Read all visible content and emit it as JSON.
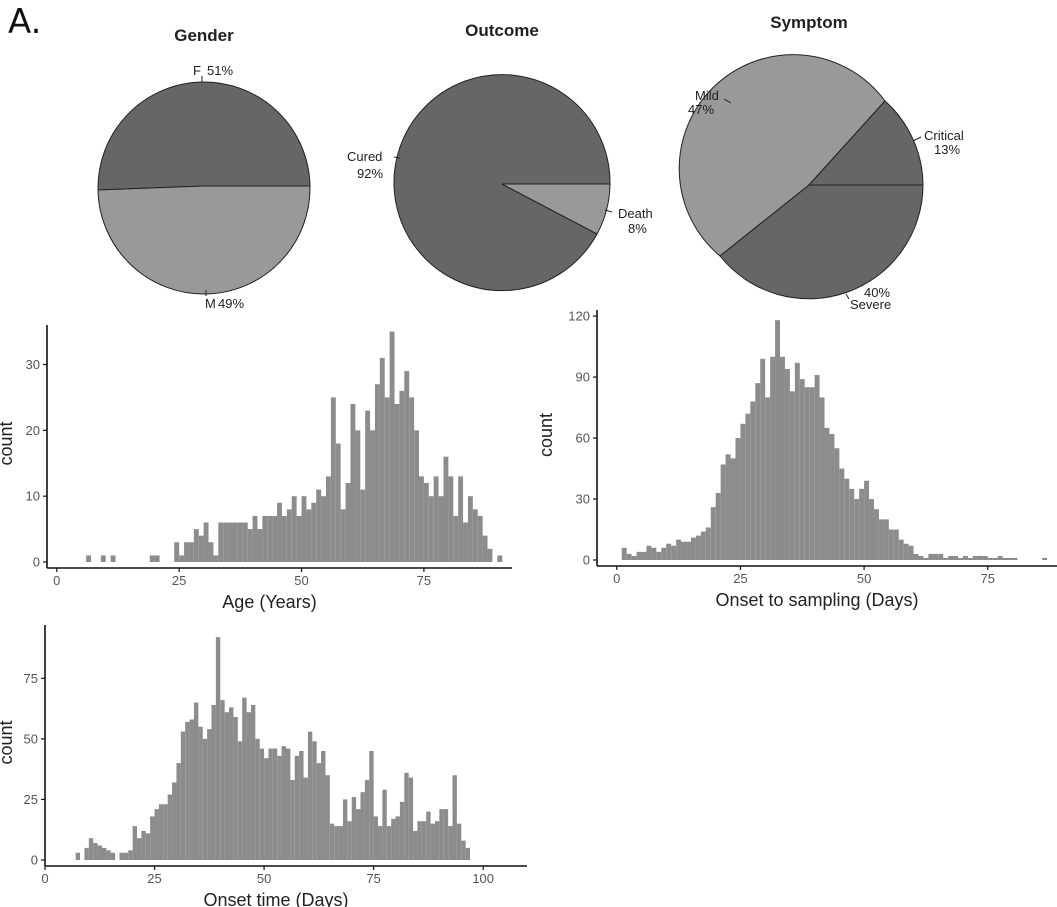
{
  "panel_letter": "A.",
  "chart_data": [
    {
      "type": "pie",
      "title": "Gender",
      "slices": [
        {
          "label": "F",
          "percent_label": "51%",
          "value": 51,
          "color": "#666666"
        },
        {
          "label": "M",
          "percent_label": "49%",
          "value": 49,
          "color": "#999999"
        }
      ]
    },
    {
      "type": "pie",
      "title": "Outcome",
      "slices": [
        {
          "label": "Death",
          "percent_label": "8%",
          "value": 8,
          "color": "#999999"
        },
        {
          "label": "Cured",
          "percent_label": "92%",
          "value": 92,
          "color": "#666666"
        }
      ]
    },
    {
      "type": "pie",
      "title": "Symptom",
      "slices": [
        {
          "label": "Mild",
          "percent_label": "47%",
          "value": 47,
          "color": "#999999"
        },
        {
          "label": "Critical",
          "percent_label": "13%",
          "value": 13,
          "color": "#666666"
        },
        {
          "label": "Severe",
          "percent_label": "40%",
          "value": 40,
          "color": "#666666"
        }
      ]
    },
    {
      "type": "bar",
      "subtype": "histogram",
      "title": "",
      "xlabel": "Age (Years)",
      "ylabel": "count",
      "xlim": [
        -2,
        93
      ],
      "ylim": [
        0,
        36
      ],
      "xticks": [
        0,
        25,
        50,
        75
      ],
      "yticks": [
        0,
        10,
        20,
        30
      ],
      "bin_width": 1,
      "bar_color": "#8c8c8c",
      "bins": [
        [
          6,
          1
        ],
        [
          9,
          1
        ],
        [
          11,
          1
        ],
        [
          19,
          1
        ],
        [
          20,
          1
        ],
        [
          24,
          3
        ],
        [
          25,
          1
        ],
        [
          26,
          3
        ],
        [
          27,
          3
        ],
        [
          28,
          5
        ],
        [
          29,
          4
        ],
        [
          30,
          6
        ],
        [
          31,
          3
        ],
        [
          32,
          1
        ],
        [
          33,
          6
        ],
        [
          34,
          6
        ],
        [
          35,
          6
        ],
        [
          36,
          6
        ],
        [
          37,
          6
        ],
        [
          38,
          6
        ],
        [
          39,
          5
        ],
        [
          40,
          7
        ],
        [
          41,
          5
        ],
        [
          42,
          7
        ],
        [
          43,
          7
        ],
        [
          44,
          7
        ],
        [
          45,
          9
        ],
        [
          46,
          7
        ],
        [
          47,
          8
        ],
        [
          48,
          10
        ],
        [
          49,
          7
        ],
        [
          50,
          10
        ],
        [
          51,
          8
        ],
        [
          52,
          9
        ],
        [
          53,
          11
        ],
        [
          54,
          10
        ],
        [
          55,
          13
        ],
        [
          56,
          25
        ],
        [
          57,
          18
        ],
        [
          58,
          8
        ],
        [
          59,
          12
        ],
        [
          60,
          24
        ],
        [
          61,
          20
        ],
        [
          62,
          11
        ],
        [
          63,
          23
        ],
        [
          64,
          20
        ],
        [
          65,
          27
        ],
        [
          66,
          31
        ],
        [
          67,
          25
        ],
        [
          68,
          35
        ],
        [
          69,
          24
        ],
        [
          70,
          26
        ],
        [
          71,
          29
        ],
        [
          72,
          25
        ],
        [
          73,
          20
        ],
        [
          74,
          13
        ],
        [
          75,
          12
        ],
        [
          76,
          10
        ],
        [
          77,
          13
        ],
        [
          78,
          10
        ],
        [
          79,
          16
        ],
        [
          80,
          13
        ],
        [
          81,
          7
        ],
        [
          82,
          13
        ],
        [
          83,
          6
        ],
        [
          84,
          10
        ],
        [
          85,
          8
        ],
        [
          86,
          7
        ],
        [
          87,
          4
        ],
        [
          88,
          2
        ],
        [
          90,
          1
        ]
      ]
    },
    {
      "type": "bar",
      "subtype": "histogram",
      "title": "",
      "xlabel": "Onset to sampling (Days)",
      "ylabel": "count",
      "xlim": [
        -4,
        89
      ],
      "ylim": [
        0,
        123
      ],
      "xticks": [
        0,
        25,
        50,
        75
      ],
      "yticks": [
        0,
        30,
        60,
        90,
        120
      ],
      "bin_width": 1,
      "bar_color": "#8c8c8c",
      "bins": [
        [
          1,
          6
        ],
        [
          2,
          3
        ],
        [
          3,
          2
        ],
        [
          4,
          4
        ],
        [
          5,
          4
        ],
        [
          6,
          7
        ],
        [
          7,
          6
        ],
        [
          8,
          4
        ],
        [
          9,
          6
        ],
        [
          10,
          8
        ],
        [
          11,
          7
        ],
        [
          12,
          10
        ],
        [
          13,
          9
        ],
        [
          14,
          9
        ],
        [
          15,
          11
        ],
        [
          16,
          12
        ],
        [
          17,
          14
        ],
        [
          18,
          16
        ],
        [
          19,
          26
        ],
        [
          20,
          33
        ],
        [
          21,
          47
        ],
        [
          22,
          52
        ],
        [
          23,
          50
        ],
        [
          24,
          60
        ],
        [
          25,
          67
        ],
        [
          26,
          72
        ],
        [
          27,
          78
        ],
        [
          28,
          87
        ],
        [
          29,
          99
        ],
        [
          30,
          80
        ],
        [
          31,
          100
        ],
        [
          32,
          118
        ],
        [
          33,
          100
        ],
        [
          34,
          94
        ],
        [
          35,
          83
        ],
        [
          36,
          97
        ],
        [
          37,
          89
        ],
        [
          38,
          85
        ],
        [
          39,
          85
        ],
        [
          40,
          91
        ],
        [
          41,
          80
        ],
        [
          42,
          65
        ],
        [
          43,
          62
        ],
        [
          44,
          55
        ],
        [
          45,
          45
        ],
        [
          46,
          40
        ],
        [
          47,
          35
        ],
        [
          48,
          30
        ],
        [
          49,
          35
        ],
        [
          50,
          39
        ],
        [
          51,
          30
        ],
        [
          52,
          25
        ],
        [
          53,
          20
        ],
        [
          54,
          20
        ],
        [
          55,
          15
        ],
        [
          56,
          15
        ],
        [
          57,
          10
        ],
        [
          58,
          8
        ],
        [
          59,
          7
        ],
        [
          60,
          3
        ],
        [
          61,
          2
        ],
        [
          62,
          1
        ],
        [
          63,
          3
        ],
        [
          64,
          3
        ],
        [
          65,
          3
        ],
        [
          66,
          1
        ],
        [
          67,
          2
        ],
        [
          68,
          2
        ],
        [
          69,
          1
        ],
        [
          70,
          2
        ],
        [
          71,
          1
        ],
        [
          72,
          2
        ],
        [
          73,
          2
        ],
        [
          74,
          2
        ],
        [
          75,
          1
        ],
        [
          76,
          1
        ],
        [
          77,
          2
        ],
        [
          78,
          1
        ],
        [
          79,
          1
        ],
        [
          80,
          1
        ],
        [
          86,
          1
        ]
      ]
    },
    {
      "type": "bar",
      "subtype": "histogram",
      "title": "",
      "xlabel": "Onset time (Days)",
      "ylabel": "count",
      "xlim": [
        0,
        110
      ],
      "ylim": [
        0,
        97
      ],
      "xticks": [
        0,
        25,
        50,
        75,
        100
      ],
      "yticks": [
        0,
        25,
        50,
        75
      ],
      "bin_width": 1,
      "bar_color": "#8c8c8c",
      "bins": [
        [
          7,
          3
        ],
        [
          9,
          5
        ],
        [
          10,
          9
        ],
        [
          11,
          7
        ],
        [
          12,
          6
        ],
        [
          13,
          5
        ],
        [
          14,
          4
        ],
        [
          15,
          3
        ],
        [
          17,
          3
        ],
        [
          18,
          3
        ],
        [
          19,
          4
        ],
        [
          20,
          14
        ],
        [
          21,
          9
        ],
        [
          22,
          12
        ],
        [
          23,
          11
        ],
        [
          24,
          18
        ],
        [
          25,
          21
        ],
        [
          26,
          23
        ],
        [
          27,
          23
        ],
        [
          28,
          27
        ],
        [
          29,
          32
        ],
        [
          30,
          40
        ],
        [
          31,
          53
        ],
        [
          32,
          57
        ],
        [
          33,
          58
        ],
        [
          34,
          65
        ],
        [
          35,
          55
        ],
        [
          36,
          50
        ],
        [
          37,
          54
        ],
        [
          38,
          64
        ],
        [
          39,
          92
        ],
        [
          40,
          66
        ],
        [
          41,
          61
        ],
        [
          42,
          63
        ],
        [
          43,
          59
        ],
        [
          44,
          49
        ],
        [
          45,
          67
        ],
        [
          46,
          61
        ],
        [
          47,
          64
        ],
        [
          48,
          50
        ],
        [
          49,
          46
        ],
        [
          50,
          42
        ],
        [
          51,
          46
        ],
        [
          52,
          46
        ],
        [
          53,
          43
        ],
        [
          54,
          47
        ],
        [
          55,
          46
        ],
        [
          56,
          33
        ],
        [
          57,
          43
        ],
        [
          58,
          45
        ],
        [
          59,
          34
        ],
        [
          60,
          53
        ],
        [
          61,
          49
        ],
        [
          62,
          40
        ],
        [
          63,
          45
        ],
        [
          64,
          35
        ],
        [
          65,
          15
        ],
        [
          66,
          14
        ],
        [
          67,
          14
        ],
        [
          68,
          25
        ],
        [
          69,
          16
        ],
        [
          70,
          26
        ],
        [
          71,
          21
        ],
        [
          72,
          28
        ],
        [
          73,
          33
        ],
        [
          74,
          45
        ],
        [
          75,
          18
        ],
        [
          76,
          14
        ],
        [
          77,
          29
        ],
        [
          78,
          14
        ],
        [
          79,
          17
        ],
        [
          80,
          18
        ],
        [
          81,
          24
        ],
        [
          82,
          36
        ],
        [
          83,
          34
        ],
        [
          84,
          12
        ],
        [
          85,
          16
        ],
        [
          86,
          16
        ],
        [
          87,
          20
        ],
        [
          88,
          15
        ],
        [
          89,
          16
        ],
        [
          90,
          21
        ],
        [
          91,
          21
        ],
        [
          92,
          14
        ],
        [
          93,
          35
        ],
        [
          94,
          15
        ],
        [
          95,
          8
        ],
        [
          96,
          5
        ]
      ]
    }
  ]
}
